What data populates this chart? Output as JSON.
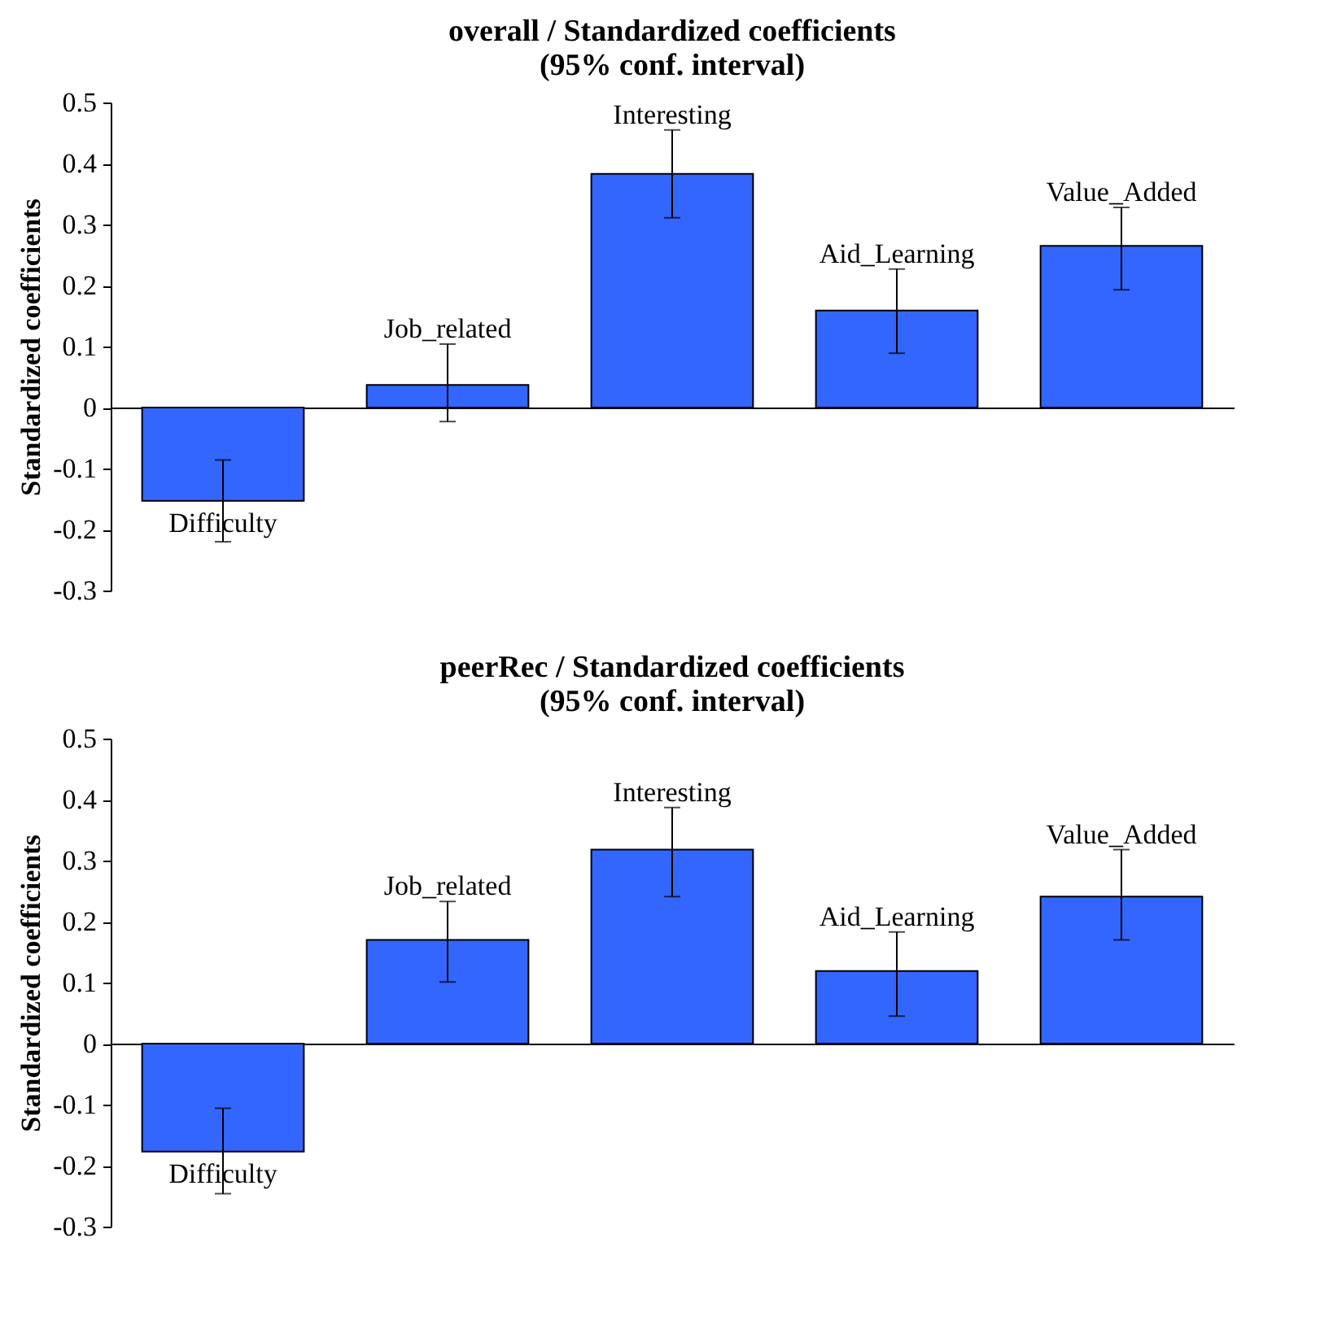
{
  "chart_data": [
    {
      "type": "bar",
      "title": [
        "overall / Standardized coefficients",
        "(95%  conf. interval)"
      ],
      "ylabel": "Standardized coefficients",
      "categories": [
        "Difficulty",
        "Job_related",
        "Interesting",
        "Aid_Learning",
        "Value_Added"
      ],
      "values": [
        -0.153,
        0.037,
        0.383,
        0.159,
        0.265
      ],
      "color": "#3366ff",
      "errors": [
        [
          -0.22,
          -0.086
        ],
        [
          -0.023,
          0.104
        ],
        [
          0.311,
          0.455
        ],
        [
          0.089,
          0.227
        ],
        [
          0.193,
          0.328
        ]
      ],
      "ylim": [
        -0.3,
        0.5
      ],
      "yticks": [
        -0.3,
        -0.2,
        -0.1,
        0,
        0.1,
        0.2,
        0.3,
        0.4,
        0.5
      ]
    },
    {
      "type": "bar",
      "title": [
        "peerRec / Standardized coefficients",
        "(95%  conf. interval)"
      ],
      "ylabel": "Standardized coefficients",
      "categories": [
        "Difficulty",
        "Job_related",
        "Interesting",
        "Aid_Learning",
        "Value_Added"
      ],
      "values": [
        -0.177,
        0.17,
        0.318,
        0.119,
        0.241
      ],
      "color": "#3366ff",
      "errors": [
        [
          -0.246,
          -0.106
        ],
        [
          0.101,
          0.233
        ],
        [
          0.241,
          0.387
        ],
        [
          0.045,
          0.183
        ],
        [
          0.17,
          0.318
        ]
      ],
      "ylim": [
        -0.3,
        0.5
      ],
      "yticks": [
        -0.3,
        -0.2,
        -0.1,
        0,
        0.1,
        0.2,
        0.3,
        0.4,
        0.5
      ]
    }
  ]
}
